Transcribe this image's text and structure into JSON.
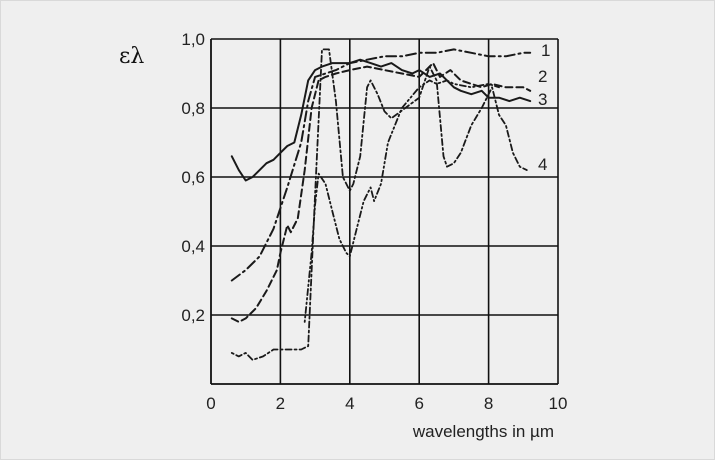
{
  "chart_data": {
    "type": "line",
    "title": "",
    "xlabel": "wavelengths in µm",
    "ylabel": "ελ",
    "xlim": [
      0,
      10
    ],
    "ylim": [
      0,
      1.0
    ],
    "x_ticks": [
      "0",
      "2",
      "4",
      "6",
      "8",
      "10"
    ],
    "y_ticks": [
      "0,2",
      "0,4",
      "0,6",
      "0,8",
      "1,0"
    ],
    "grid": true,
    "legend": "curve labels at right end",
    "series": [
      {
        "name": "1",
        "style": "solid",
        "x": [
          0.6,
          0.8,
          1.0,
          1.2,
          1.4,
          1.6,
          1.8,
          2.0,
          2.2,
          2.4,
          2.6,
          2.8,
          3.0,
          3.2,
          3.5,
          3.8,
          4.0,
          4.3,
          4.6,
          4.9,
          5.2,
          5.5,
          5.8,
          6.0,
          6.3,
          6.6,
          6.8,
          7.0,
          7.2,
          7.5,
          7.8,
          8.0,
          8.3,
          8.6,
          8.9,
          9.2
        ],
        "values": [
          0.66,
          0.62,
          0.59,
          0.6,
          0.62,
          0.64,
          0.65,
          0.67,
          0.69,
          0.7,
          0.78,
          0.88,
          0.91,
          0.92,
          0.93,
          0.93,
          0.93,
          0.94,
          0.93,
          0.92,
          0.93,
          0.91,
          0.9,
          0.91,
          0.89,
          0.9,
          0.88,
          0.86,
          0.85,
          0.84,
          0.85,
          0.83,
          0.83,
          0.82,
          0.83,
          0.82
        ]
      },
      {
        "name": "2",
        "style": "dash-dot",
        "x": [
          0.6,
          1.0,
          1.4,
          1.8,
          2.2,
          2.6,
          2.8,
          3.0,
          3.3,
          3.6,
          4.0,
          4.5,
          5.0,
          5.5,
          6.0,
          6.5,
          7.0,
          7.5,
          8.0,
          8.5,
          9.0,
          9.2
        ],
        "values": [
          0.3,
          0.33,
          0.37,
          0.45,
          0.57,
          0.7,
          0.82,
          0.89,
          0.9,
          0.91,
          0.93,
          0.94,
          0.95,
          0.95,
          0.96,
          0.96,
          0.97,
          0.96,
          0.95,
          0.95,
          0.96,
          0.96
        ]
      },
      {
        "name": "3",
        "style": "dash",
        "x": [
          0.6,
          0.8,
          1.0,
          1.3,
          1.6,
          1.9,
          2.0,
          2.2,
          2.3,
          2.5,
          2.7,
          2.9,
          3.1,
          3.3,
          3.6,
          4.0,
          4.5,
          5.0,
          5.5,
          6.0,
          6.4,
          6.6,
          6.9,
          7.2,
          7.5,
          7.8,
          8.1,
          8.5,
          9.0,
          9.2
        ],
        "values": [
          0.19,
          0.18,
          0.19,
          0.22,
          0.27,
          0.33,
          0.38,
          0.46,
          0.44,
          0.48,
          0.62,
          0.8,
          0.88,
          0.89,
          0.9,
          0.91,
          0.92,
          0.91,
          0.9,
          0.89,
          0.93,
          0.89,
          0.91,
          0.88,
          0.87,
          0.86,
          0.87,
          0.86,
          0.86,
          0.85
        ]
      },
      {
        "name": "4",
        "style": "dot-dash-dot",
        "x": [
          0.6,
          0.8,
          1.0,
          1.2,
          1.5,
          1.8,
          2.0,
          2.3,
          2.6,
          2.8,
          3.0,
          3.2,
          3.4,
          3.6,
          3.8,
          4.0,
          4.1,
          4.3,
          4.5,
          4.6,
          4.7,
          4.8,
          5.0,
          5.2,
          5.6,
          6.0,
          6.3,
          6.5,
          6.7,
          6.8,
          7.0,
          7.2,
          7.5,
          7.8,
          8.1,
          8.3,
          8.5,
          8.7,
          8.9,
          9.1
        ],
        "values": [
          0.09,
          0.08,
          0.09,
          0.07,
          0.08,
          0.1,
          0.1,
          0.1,
          0.1,
          0.11,
          0.55,
          0.97,
          0.97,
          0.82,
          0.6,
          0.56,
          0.58,
          0.66,
          0.86,
          0.88,
          0.86,
          0.84,
          0.79,
          0.77,
          0.8,
          0.83,
          0.92,
          0.88,
          0.66,
          0.63,
          0.64,
          0.67,
          0.75,
          0.8,
          0.86,
          0.78,
          0.75,
          0.67,
          0.63,
          0.62
        ]
      },
      {
        "name": "",
        "style": "dot-dot-dash",
        "x": [
          2.7,
          2.9,
          3.0,
          3.1,
          3.3,
          3.5,
          3.7,
          3.9,
          4.0,
          4.2,
          4.4,
          4.6,
          4.7,
          4.9,
          5.1,
          5.5,
          6.0,
          6.3,
          6.5,
          6.8,
          7.0,
          7.5,
          8.0,
          8.3
        ],
        "values": [
          0.18,
          0.38,
          0.52,
          0.61,
          0.58,
          0.5,
          0.42,
          0.38,
          0.37,
          0.45,
          0.53,
          0.57,
          0.53,
          0.58,
          0.7,
          0.8,
          0.86,
          0.88,
          0.87,
          0.88,
          0.87,
          0.86,
          0.87,
          0.86
        ]
      }
    ]
  }
}
